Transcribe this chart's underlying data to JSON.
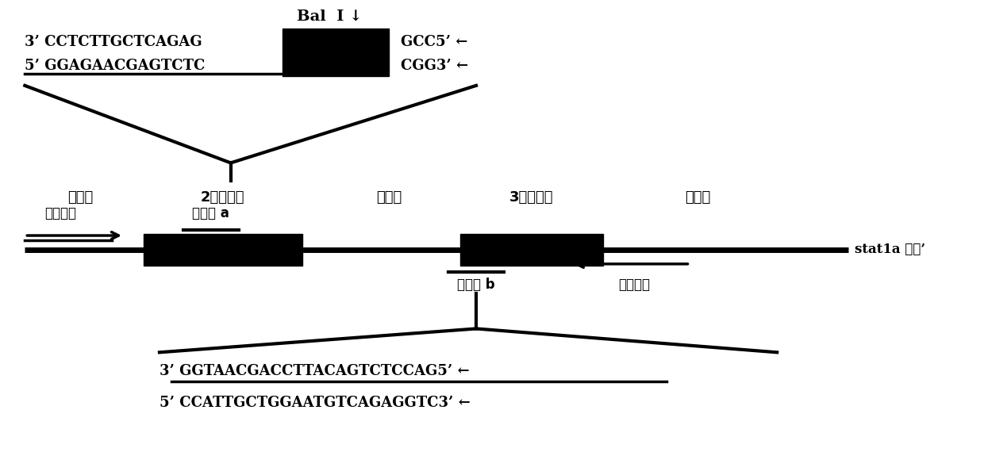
{
  "bg_color": "#ffffff",
  "fig_width": 12.4,
  "fig_height": 5.99,
  "bal_label": "Bal  I ↓",
  "top_seq1_left": "3’ CCTCTTGCTCAGAG",
  "top_seq1_right": "GCC5’ ←",
  "top_seq2_left": "5’ GGAGAACGAGTCTC",
  "top_seq2_right": "CGG3’ ←",
  "label_intron1": "内含子",
  "label_exon2": "2号外显子",
  "label_intron2": "内含子",
  "label_exon3": "3号外显子",
  "label_intron3": "内含子",
  "label_upstream": "上游引物",
  "label_target_a": "靶位点 a",
  "label_target_b": "靶位点 b",
  "label_downstream": "下游引物",
  "label_gene": "stat1a 基因’",
  "bot_seq1": "3’ GGTAACGACCTTACAGTCTCCAG5’ ←",
  "bot_seq2": "5’ CCATTGCTGGAATGTCAGAGGTC3’ ←"
}
